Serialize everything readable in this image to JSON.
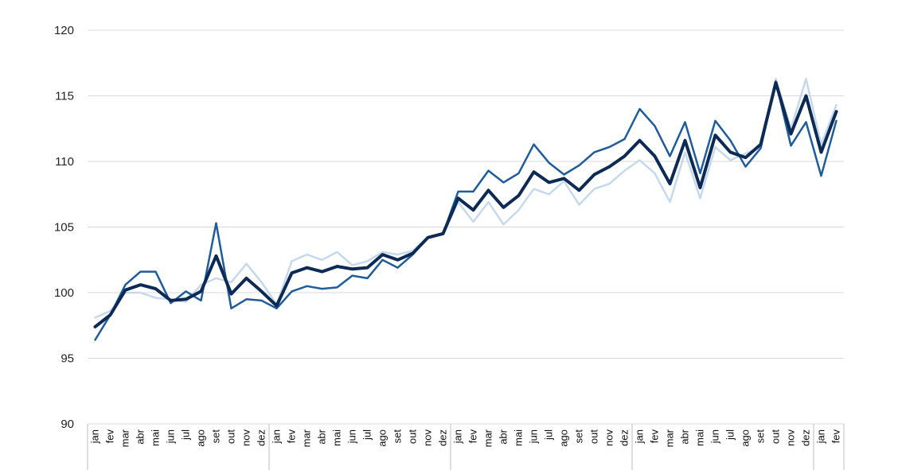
{
  "chart_data": {
    "type": "line",
    "title": "",
    "xlabel": "",
    "ylabel": "",
    "ylim": [
      90,
      120
    ],
    "yticks": [
      90,
      95,
      100,
      105,
      110,
      115,
      120
    ],
    "grid": true,
    "legend": "none",
    "categories": [
      "jan",
      "fev",
      "mar",
      "abr",
      "mai",
      "jun",
      "jul",
      "ago",
      "set",
      "out",
      "nov",
      "dez",
      "jan",
      "fev",
      "mar",
      "abr",
      "mai",
      "jun",
      "jul",
      "ago",
      "set",
      "out",
      "nov",
      "dez",
      "jan",
      "fev",
      "mar",
      "abr",
      "mai",
      "jun",
      "jul",
      "ago",
      "set",
      "out",
      "nov",
      "dez",
      "jan",
      "fev",
      "mar",
      "abr",
      "mai",
      "jun",
      "jul",
      "ago",
      "set",
      "out",
      "nov",
      "dez",
      "jan",
      "fev"
    ],
    "series": [
      {
        "color": "#c6d9ec",
        "width": 2.5,
        "values": [
          98.1,
          98.6,
          100.0,
          100.0,
          99.6,
          99.5,
          99.3,
          100.6,
          101.1,
          100.8,
          102.2,
          100.8,
          99.1,
          102.4,
          102.9,
          102.5,
          103.1,
          102.1,
          102.4,
          103.1,
          102.9,
          103.2,
          104.2,
          104.5,
          106.9,
          105.4,
          106.9,
          105.2,
          106.3,
          107.9,
          107.5,
          108.5,
          106.7,
          107.9,
          108.3,
          109.3,
          110.1,
          109.1,
          106.9,
          110.7,
          107.2,
          111.1,
          110.1,
          110.6,
          111.1,
          116.3,
          112.5,
          116.3,
          111.3,
          114.3
        ]
      },
      {
        "color": "#1f5c99",
        "width": 2.5,
        "values": [
          96.4,
          98.3,
          100.6,
          101.6,
          101.6,
          99.2,
          100.1,
          99.4,
          105.3,
          98.8,
          99.5,
          99.4,
          98.8,
          100.1,
          100.5,
          100.3,
          100.4,
          101.3,
          101.1,
          102.5,
          101.9,
          102.9,
          104.2,
          104.5,
          107.7,
          107.7,
          109.3,
          108.4,
          109.1,
          111.3,
          109.9,
          109.0,
          109.7,
          110.7,
          111.1,
          111.7,
          114.0,
          112.7,
          110.4,
          113.0,
          109.1,
          113.1,
          111.6,
          109.6,
          111.0,
          116.1,
          111.2,
          113.0,
          108.9,
          113.1
        ]
      },
      {
        "color": "#0d2a55",
        "width": 4,
        "values": [
          97.4,
          98.3,
          100.2,
          100.6,
          100.3,
          99.4,
          99.5,
          100.1,
          102.8,
          99.9,
          101.1,
          100.1,
          99.0,
          101.5,
          101.9,
          101.6,
          102.0,
          101.8,
          101.9,
          102.9,
          102.5,
          103.0,
          104.2,
          104.5,
          107.2,
          106.3,
          107.8,
          106.5,
          107.4,
          109.2,
          108.4,
          108.7,
          107.8,
          109.0,
          109.6,
          110.4,
          111.6,
          110.4,
          108.3,
          111.6,
          108.0,
          112.0,
          110.7,
          110.3,
          111.3,
          116.0,
          112.1,
          115.0,
          110.7,
          113.8
        ]
      }
    ]
  }
}
